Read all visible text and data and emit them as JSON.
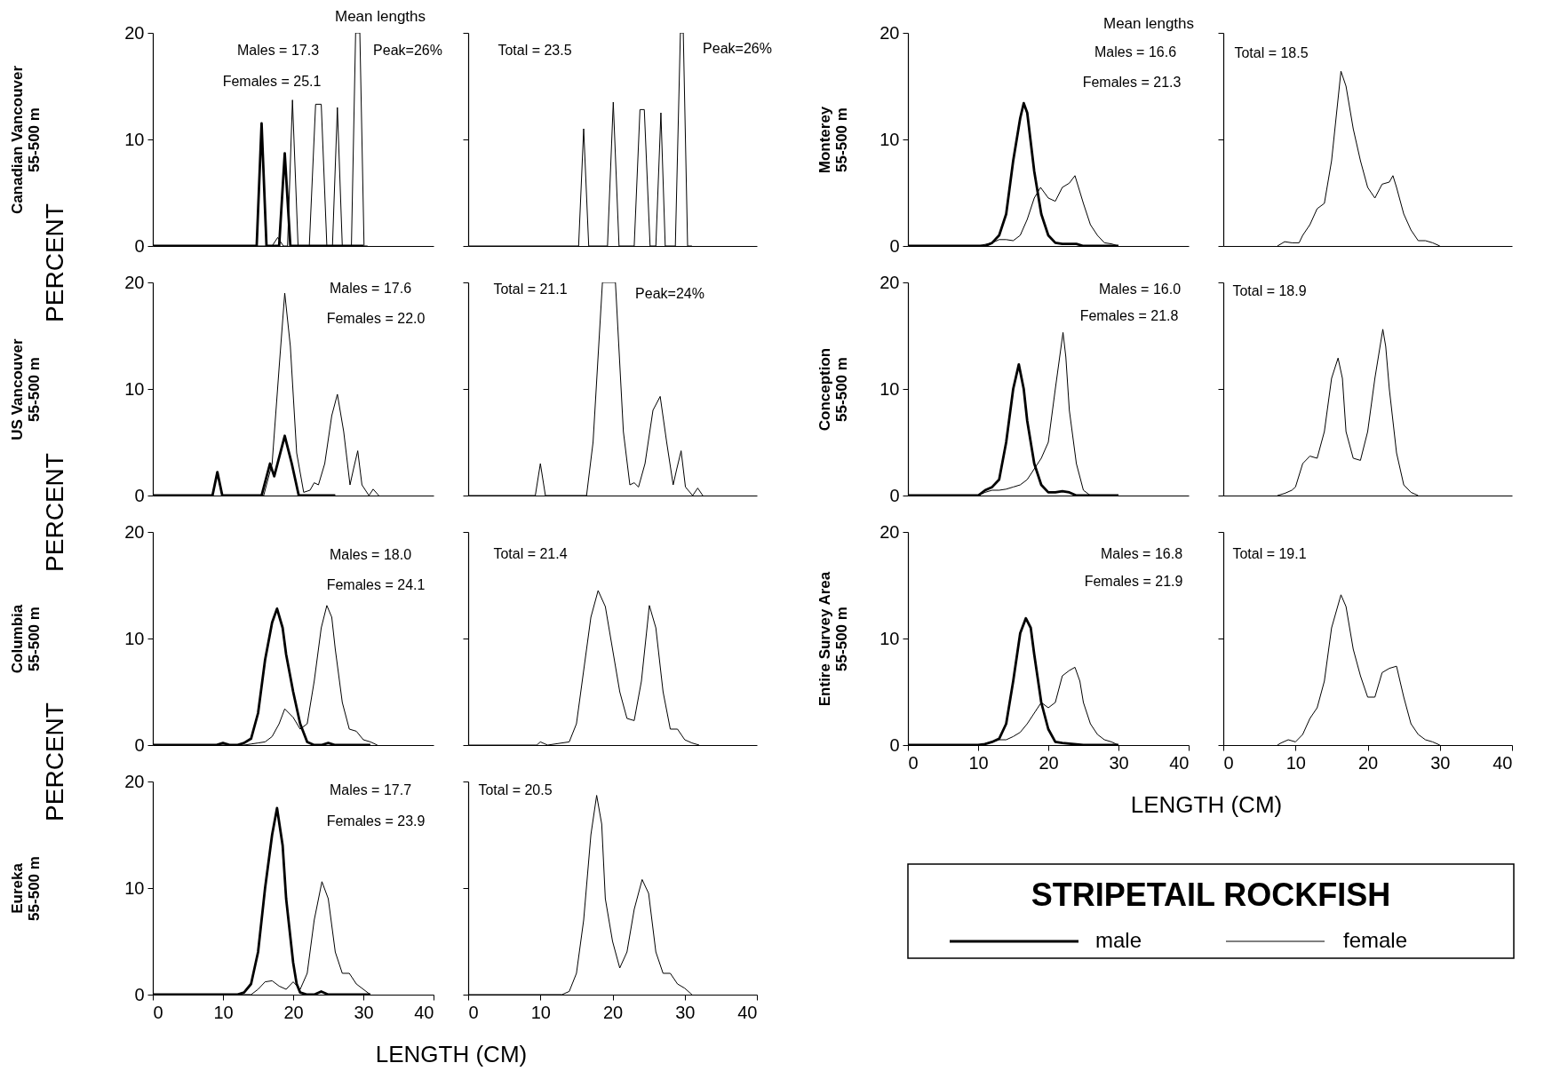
{
  "chart_data": [
    {
      "type": "line",
      "ylabel": "Canadian Vancouver\n55-500 m",
      "xlim": [
        0,
        40
      ],
      "ylim": [
        0,
        20
      ],
      "xticks": [
        0,
        10,
        20,
        30,
        40
      ],
      "yticks": [
        0,
        10,
        20
      ],
      "tick_labels": "y",
      "annotations": [
        "Mean lengths",
        "Males = 17.3",
        "Females = 25.1",
        "Peak=26%"
      ],
      "series": [
        {
          "color": "#000000",
          "x": [
            0,
            14.8,
            15.5,
            16.2,
            18,
            18.8,
            19.6,
            30
          ],
          "values": [
            0,
            0,
            11.5,
            0,
            0,
            8.7,
            0,
            0
          ]
        },
        {
          "color": "#000000",
          "x": [
            0,
            17,
            17.8,
            18.6,
            19.2,
            19.9,
            20.7,
            22.3,
            23.2,
            24,
            24.8,
            25.6,
            26.3,
            27,
            28.3,
            28.9,
            29.5,
            30.1,
            30.6
          ],
          "values": [
            0,
            0,
            0.8,
            0,
            0,
            13.7,
            0,
            0,
            13.3,
            13.3,
            0,
            0,
            13,
            0,
            0,
            20,
            20,
            0,
            0
          ]
        }
      ]
    },
    {
      "type": "line",
      "xlim": [
        0,
        40
      ],
      "ylim": [
        0,
        20
      ],
      "xticks": [
        0,
        10,
        20,
        30,
        40
      ],
      "yticks": [
        0,
        10,
        20
      ],
      "tick_labels": false,
      "annotations": [
        "Total = 23.5",
        "Peak=26%"
      ],
      "series": [
        {
          "color": "#000000",
          "x": [
            0,
            15.3,
            16.0,
            16.7,
            19.3,
            20.1,
            20.9,
            23.0,
            23.8,
            24.4,
            25.2,
            26.0,
            26.7,
            27.3,
            28.7,
            29.4,
            29.8,
            30.4,
            31
          ],
          "values": [
            0,
            0,
            11,
            0,
            0,
            13.5,
            0,
            0,
            12.8,
            12.8,
            0,
            0,
            12.5,
            0,
            0,
            20,
            20,
            0,
            0
          ]
        }
      ]
    },
    {
      "type": "line",
      "ylabel": "US Vancouver\n55-500 m",
      "xlim": [
        0,
        40
      ],
      "ylim": [
        0,
        20
      ],
      "xticks": [
        0,
        10,
        20,
        30,
        40
      ],
      "yticks": [
        0,
        10,
        20
      ],
      "tick_labels": "y",
      "annotations": [
        "PERCENT",
        "Males = 17.6",
        "Females = 22.0"
      ],
      "series": [
        {
          "color": "#000000",
          "x": [
            0,
            8.5,
            9.2,
            9.9,
            15.5,
            16.7,
            17.3,
            18.8,
            19.8,
            20.8,
            26
          ],
          "values": [
            0,
            0,
            2.2,
            0,
            0,
            3,
            1.8,
            5.6,
            3,
            0,
            0
          ]
        },
        {
          "color": "#000000",
          "x": [
            0,
            8.5,
            9.2,
            9.9,
            15.8,
            17,
            18,
            18.8,
            19.6,
            20.5,
            21.5,
            22.4,
            23,
            23.6,
            24.5,
            25.5,
            26.3,
            27.2,
            28.1,
            28.6,
            29.2,
            29.8,
            30.8,
            31.4,
            32.2
          ],
          "values": [
            0,
            0,
            2.0,
            0,
            0,
            3,
            12,
            19,
            14,
            4,
            0.3,
            0.5,
            1.2,
            1,
            3,
            7.5,
            9.5,
            6,
            1,
            2.5,
            4.2,
            1,
            0,
            0.6,
            0
          ]
        }
      ]
    },
    {
      "type": "line",
      "xlim": [
        0,
        40
      ],
      "ylim": [
        0,
        20
      ],
      "xticks": [
        0,
        10,
        20,
        30,
        40
      ],
      "yticks": [
        0,
        10,
        20
      ],
      "tick_labels": false,
      "annotations": [
        "Total = 21.1",
        "Peak=24%"
      ],
      "series": [
        {
          "color": "#000000",
          "x": [
            0,
            9.3,
            10,
            10.7,
            16.4,
            17.3,
            18.6,
            20.4,
            21.5,
            22.4,
            23,
            23.6,
            24.5,
            25.6,
            26.6,
            27.5,
            28.4,
            28.9,
            29.5,
            30.1,
            31.1,
            31.8,
            32.5
          ],
          "values": [
            0,
            0,
            3,
            0,
            0,
            5,
            20,
            20,
            6,
            1,
            1.2,
            0.8,
            3,
            8,
            9.3,
            5,
            1,
            2.5,
            4.2,
            0.8,
            0,
            0.7,
            0
          ]
        }
      ]
    },
    {
      "type": "line",
      "ylabel": "Columbia\n55-500 m",
      "xlim": [
        0,
        40
      ],
      "ylim": [
        0,
        20
      ],
      "xticks": [
        0,
        10,
        20,
        30,
        40
      ],
      "yticks": [
        0,
        10,
        20
      ],
      "tick_labels": "y",
      "annotations": [
        "PERCENT",
        "Males = 18.0",
        "Females = 24.1"
      ],
      "series": [
        {
          "color": "#000000",
          "x": [
            0,
            9,
            10,
            11,
            12,
            13,
            14,
            15,
            16,
            17,
            17.7,
            18.5,
            19,
            20,
            21,
            22,
            23,
            24,
            25,
            26,
            31
          ],
          "values": [
            0,
            0,
            0.2,
            0,
            0,
            0.2,
            0.6,
            3,
            8,
            11.5,
            12.8,
            11,
            8.5,
            5,
            2,
            0.3,
            0,
            0,
            0.2,
            0,
            0
          ]
        },
        {
          "color": "#000000",
          "x": [
            0,
            13,
            14,
            15,
            16,
            17,
            18,
            18.8,
            20,
            21,
            22,
            23,
            24,
            24.8,
            25.5,
            26,
            27,
            28,
            29,
            30,
            31,
            32
          ],
          "values": [
            0,
            0,
            0.1,
            0.2,
            0.3,
            0.8,
            2,
            3.4,
            2.6,
            1.5,
            2,
            6,
            11,
            13.1,
            12,
            9,
            4,
            1.5,
            1.3,
            0.5,
            0.3,
            0
          ]
        }
      ]
    },
    {
      "type": "line",
      "xlim": [
        0,
        40
      ],
      "ylim": [
        0,
        20
      ],
      "xticks": [
        0,
        10,
        20,
        30,
        40
      ],
      "yticks": [
        0,
        10,
        20
      ],
      "tick_labels": false,
      "annotations": [
        "Total = 21.4"
      ],
      "series": [
        {
          "color": "#000000",
          "x": [
            0,
            9.5,
            10,
            11,
            14,
            15,
            16,
            17,
            18,
            19,
            20,
            21,
            22,
            23,
            24,
            25.1,
            26,
            27,
            28,
            29,
            30,
            31,
            32
          ],
          "values": [
            0,
            0,
            0.3,
            0,
            0.3,
            2,
            7,
            12,
            14.5,
            13,
            9,
            5,
            2.5,
            2.3,
            6,
            13.1,
            11,
            5,
            1.5,
            1.5,
            0.5,
            0.2,
            0
          ]
        }
      ]
    },
    {
      "type": "line",
      "ylabel": "Eureka\n55-500 m",
      "xlabel": "LENGTH (CM)",
      "xlim": [
        0,
        40
      ],
      "ylim": [
        0,
        20
      ],
      "xticks": [
        0,
        10,
        20,
        30,
        40
      ],
      "yticks": [
        0,
        10,
        20
      ],
      "annotations": [
        "PERCENT",
        "Males = 17.7",
        "Females = 23.9"
      ],
      "series": [
        {
          "color": "#000000",
          "x": [
            0,
            12,
            13,
            14,
            15,
            16,
            17,
            17.7,
            18.5,
            19,
            20,
            20.5,
            21,
            22,
            23,
            24,
            25,
            31
          ],
          "values": [
            0,
            0,
            0.2,
            1,
            4,
            10,
            15,
            17.5,
            14,
            9,
            3,
            1,
            0.2,
            0,
            0,
            0.3,
            0,
            0
          ]
        },
        {
          "color": "#000000",
          "x": [
            0,
            14,
            15,
            16,
            17,
            18,
            19,
            20,
            21,
            22,
            23,
            24.1,
            25,
            26,
            27,
            28,
            29,
            30,
            31
          ],
          "values": [
            0,
            0,
            0.5,
            1.2,
            1.3,
            0.8,
            0.5,
            1.2,
            0.5,
            2,
            7,
            10.6,
            9,
            4,
            2,
            2,
            1,
            0.5,
            0
          ]
        }
      ]
    },
    {
      "type": "line",
      "xlim": [
        0,
        40
      ],
      "ylim": [
        0,
        20
      ],
      "xticks": [
        0,
        10,
        20,
        30,
        40
      ],
      "yticks": [
        0,
        10,
        20
      ],
      "tick_labels": "x",
      "annotations": [
        "Total = 20.5"
      ],
      "series": [
        {
          "color": "#000000",
          "x": [
            0,
            13,
            14,
            15,
            16,
            17,
            17.8,
            18.5,
            19,
            20,
            21,
            22,
            23,
            24.1,
            25,
            26,
            27,
            28,
            29,
            30,
            31
          ],
          "values": [
            0,
            0,
            0.3,
            2,
            7,
            15,
            18.7,
            16,
            9,
            5,
            2.5,
            4,
            8,
            10.8,
            9.5,
            4,
            2,
            2,
            1,
            0.6,
            0
          ]
        }
      ]
    },
    {
      "type": "line",
      "ylabel": "Monterey\n55-500 m",
      "xlim": [
        0,
        40
      ],
      "ylim": [
        0,
        20
      ],
      "xticks": [
        0,
        10,
        20,
        30,
        40
      ],
      "yticks": [
        0,
        10,
        20
      ],
      "tick_labels": "y",
      "annotations": [
        "Mean lengths",
        "Males = 16.6",
        "Females = 21.3"
      ],
      "series": [
        {
          "color": "#000000",
          "x": [
            0,
            11,
            12,
            13,
            14,
            15,
            16,
            16.5,
            17,
            18,
            19,
            20,
            21,
            22,
            24,
            25,
            30
          ],
          "values": [
            0,
            0,
            0.3,
            1,
            3,
            8,
            12,
            13.4,
            12.5,
            7,
            3,
            1,
            0.3,
            0.2,
            0.2,
            0,
            0
          ]
        },
        {
          "color": "#000000",
          "x": [
            0,
            10,
            12,
            13,
            14,
            15,
            16,
            17,
            18,
            18.9,
            20,
            21,
            22,
            23,
            23.8,
            25,
            26,
            27,
            28,
            29,
            30
          ],
          "values": [
            0,
            0,
            0.3,
            0.6,
            0.6,
            0.5,
            1,
            2.5,
            4.5,
            5.5,
            4.5,
            4.2,
            5.5,
            5.9,
            6.6,
            4,
            2,
            1,
            0.3,
            0.2,
            0
          ]
        }
      ]
    },
    {
      "type": "line",
      "xlim": [
        0,
        40
      ],
      "ylim": [
        0,
        20
      ],
      "xticks": [
        0,
        10,
        20,
        30,
        40
      ],
      "yticks": [
        0,
        10,
        20
      ],
      "tick_labels": false,
      "annotations": [
        "Total = 18.5"
      ],
      "series": [
        {
          "color": "#000000",
          "x": [
            7.5,
            8.5,
            9.5,
            10.5,
            11,
            12,
            13,
            14,
            15,
            16.3,
            17,
            18,
            19,
            20,
            21,
            22,
            23,
            23.5,
            24,
            25,
            26,
            27,
            28,
            29,
            30
          ],
          "values": [
            0,
            0.4,
            0.3,
            0.3,
            1,
            2,
            3.5,
            4,
            8,
            16.4,
            15,
            11,
            8,
            5.5,
            4.5,
            5.8,
            6,
            6.6,
            5.5,
            3,
            1.5,
            0.5,
            0.5,
            0.3,
            0
          ]
        }
      ]
    },
    {
      "type": "line",
      "ylabel": "Conception\n55-500 m",
      "xlim": [
        0,
        40
      ],
      "ylim": [
        0,
        20
      ],
      "xticks": [
        0,
        10,
        20,
        30,
        40
      ],
      "yticks": [
        0,
        10,
        20
      ],
      "tick_labels": "y",
      "annotations": [
        "Males = 16.0",
        "Females = 21.8"
      ],
      "series": [
        {
          "color": "#000000",
          "x": [
            0,
            10,
            11,
            12,
            13,
            14,
            15,
            15.8,
            16.5,
            17,
            18,
            19,
            20,
            21,
            22,
            23,
            24,
            30
          ],
          "values": [
            0,
            0,
            0.5,
            0.8,
            1.5,
            5,
            10,
            12.3,
            10,
            7,
            3,
            1,
            0.3,
            0.3,
            0.4,
            0.3,
            0,
            0
          ]
        },
        {
          "color": "#000000",
          "x": [
            0,
            10,
            11,
            12,
            13,
            14,
            15,
            16,
            17,
            18,
            19,
            20,
            21,
            22.1,
            22.5,
            23,
            24,
            25,
            26,
            30
          ],
          "values": [
            0,
            0,
            0.3,
            0.5,
            0.5,
            0.6,
            0.8,
            1,
            1.5,
            2.5,
            3.5,
            5,
            10,
            15.3,
            13,
            8,
            3,
            0.5,
            0,
            0
          ]
        }
      ]
    },
    {
      "type": "line",
      "xlim": [
        0,
        40
      ],
      "ylim": [
        0,
        20
      ],
      "xticks": [
        0,
        10,
        20,
        30,
        40
      ],
      "yticks": [
        0,
        10,
        20
      ],
      "tick_labels": false,
      "annotations": [
        "Total = 18.9"
      ],
      "series": [
        {
          "color": "#000000",
          "x": [
            7.5,
            8.5,
            9.5,
            10,
            11,
            12,
            13,
            14,
            15,
            15.9,
            16.5,
            17,
            18,
            19,
            20,
            21,
            22.1,
            22.5,
            23,
            24,
            25,
            26,
            27
          ],
          "values": [
            0,
            0.2,
            0.5,
            0.8,
            3,
            3.7,
            3.5,
            6,
            11,
            12.9,
            11,
            6,
            3.5,
            3.3,
            6,
            11,
            15.6,
            14,
            10,
            4,
            1,
            0.3,
            0
          ]
        }
      ]
    },
    {
      "type": "line",
      "ylabel": "Entire Survey Area\n55-500 m",
      "xlabel": "LENGTH (CM)",
      "xlim": [
        0,
        40
      ],
      "ylim": [
        0,
        20
      ],
      "xticks": [
        0,
        10,
        20,
        30,
        40
      ],
      "yticks": [
        0,
        10,
        20
      ],
      "annotations": [
        "Males = 16.8",
        "Females = 21.9"
      ],
      "series": [
        {
          "color": "#000000",
          "x": [
            0,
            10,
            11,
            12,
            13,
            14,
            15,
            16,
            16.8,
            17.5,
            18,
            19,
            20,
            21,
            22,
            25,
            30
          ],
          "values": [
            0,
            0,
            0.1,
            0.3,
            0.6,
            2,
            6,
            10.5,
            11.9,
            11,
            8.5,
            4,
            1.5,
            0.3,
            0.2,
            0,
            0
          ]
        },
        {
          "color": "#000000",
          "x": [
            0,
            10,
            12,
            13,
            14,
            15,
            16,
            17,
            18,
            19,
            20,
            21,
            22,
            23,
            23.8,
            24.5,
            25,
            26,
            27,
            28,
            29,
            30
          ],
          "values": [
            0,
            0,
            0.3,
            0.5,
            0.5,
            0.8,
            1.2,
            2,
            3,
            4,
            3.5,
            4,
            6.5,
            7,
            7.3,
            6,
            4,
            2,
            1,
            0.5,
            0.3,
            0
          ]
        }
      ]
    },
    {
      "type": "line",
      "xlim": [
        0,
        40
      ],
      "ylim": [
        0,
        20
      ],
      "xticks": [
        0,
        10,
        20,
        30,
        40
      ],
      "yticks": [
        0,
        10,
        20
      ],
      "tick_labels": "x",
      "annotations": [
        "Total = 19.1"
      ],
      "series": [
        {
          "color": "#000000",
          "x": [
            7.5,
            8,
            9,
            10,
            11,
            12,
            13,
            14,
            15,
            16.3,
            17,
            18,
            19,
            20,
            21,
            22,
            23,
            24,
            25,
            26,
            27,
            28,
            29,
            30
          ],
          "values": [
            0,
            0.2,
            0.5,
            0.3,
            1,
            2.5,
            3.5,
            6,
            11,
            14.1,
            13,
            9,
            6.5,
            4.5,
            4.5,
            6.8,
            7.2,
            7.4,
            4.5,
            2,
            1,
            0.5,
            0.3,
            0
          ]
        }
      ]
    },
    {
      "type": "other",
      "title": "STRIPETAIL ROCKFISH",
      "series": [
        {
          "name": "male",
          "color": "#000000"
        },
        {
          "name": "female",
          "color": "#000000"
        }
      ]
    }
  ]
}
